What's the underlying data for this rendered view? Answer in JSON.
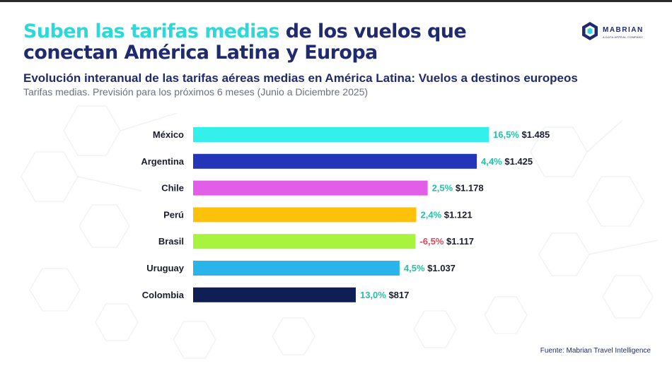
{
  "header": {
    "title_highlight": "Suben las tarifas medias",
    "title_rest": " de los vuelos que conectan América Latina y Europa",
    "subtitle": "Evolución interanual de las tarifas aéreas medias en América Latina: Vuelos a destinos europeos",
    "note": "Tarifas medias. Previsión para los próximos 6 meses (Junio a Diciembre 2025)"
  },
  "logo": {
    "name": "MABRIAN",
    "tagline": "A DATA APPEAL COMPANY",
    "icon": "hexagon-cube-icon"
  },
  "source": "Fuente: Mabrian Travel Intelligence",
  "colors": {
    "title": "#1f2b6e",
    "title_highlight": "#2fd8d8",
    "positive_change": "#22c3a6",
    "negative_change": "#e0455d"
  },
  "chart_data": {
    "type": "bar",
    "orientation": "horizontal",
    "categories": [
      "México",
      "Argentina",
      "Chile",
      "Perú",
      "Brasil",
      "Uruguay",
      "Colombia"
    ],
    "values": [
      1485,
      1425,
      1178,
      1121,
      1117,
      1037,
      817
    ],
    "value_labels": [
      "$1.485",
      "$1.425",
      "$1.178",
      "$1.121",
      "$1.117",
      "$1.037",
      "$817"
    ],
    "change_labels": [
      "16,5%",
      "4,4%",
      "2,5%",
      "2,4%",
      "-6,5%",
      "4,5%",
      "13,0%"
    ],
    "change_values": [
      16.5,
      4.4,
      2.5,
      2.4,
      -6.5,
      4.5,
      13.0
    ],
    "bar_colors": [
      "#33f0ea",
      "#2535b8",
      "#e35ee8",
      "#fcc10a",
      "#a8f33e",
      "#29b5ea",
      "#0f1e55"
    ],
    "xlim": [
      0,
      1485
    ],
    "grid": false,
    "legend": "none"
  }
}
